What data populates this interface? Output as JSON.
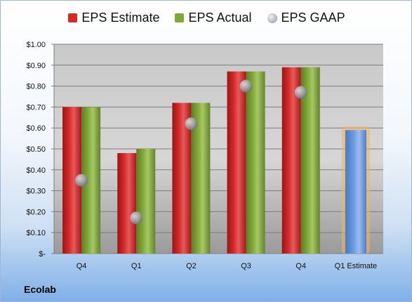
{
  "company": "Ecolab",
  "colors": {
    "estimate": "#d42a2a",
    "actual": "#82a83a",
    "gaap": "#a0a4ad",
    "forecast": "#6d9be0",
    "forecast_glow": "#f6b25a"
  },
  "chart_data": {
    "type": "bar",
    "categories": [
      "Q4",
      "Q1",
      "Q2",
      "Q3",
      "Q4",
      "Q1 Estimate"
    ],
    "series": [
      {
        "name": "EPS Estimate",
        "values": [
          0.7,
          0.48,
          0.72,
          0.87,
          0.89,
          null
        ]
      },
      {
        "name": "EPS Actual",
        "values": [
          0.7,
          0.5,
          0.72,
          0.87,
          0.89,
          null
        ]
      },
      {
        "name": "EPS GAAP",
        "values": [
          0.35,
          0.17,
          0.62,
          0.8,
          0.77,
          null
        ]
      }
    ],
    "forecast": {
      "category": "Q1 Estimate",
      "value": 0.59
    },
    "legend_position": "top",
    "ylim": [
      0,
      1.0
    ],
    "ytick_values": [
      0,
      0.1,
      0.2,
      0.3,
      0.4,
      0.5,
      0.6,
      0.7,
      0.8,
      0.9,
      1.0
    ],
    "ytick_labels": [
      "$-",
      "$0.10",
      "$0.20",
      "$0.30",
      "$0.40",
      "$0.50",
      "$0.60",
      "$0.70",
      "$0.80",
      "$0.90",
      "$1.00"
    ],
    "grid": true
  }
}
